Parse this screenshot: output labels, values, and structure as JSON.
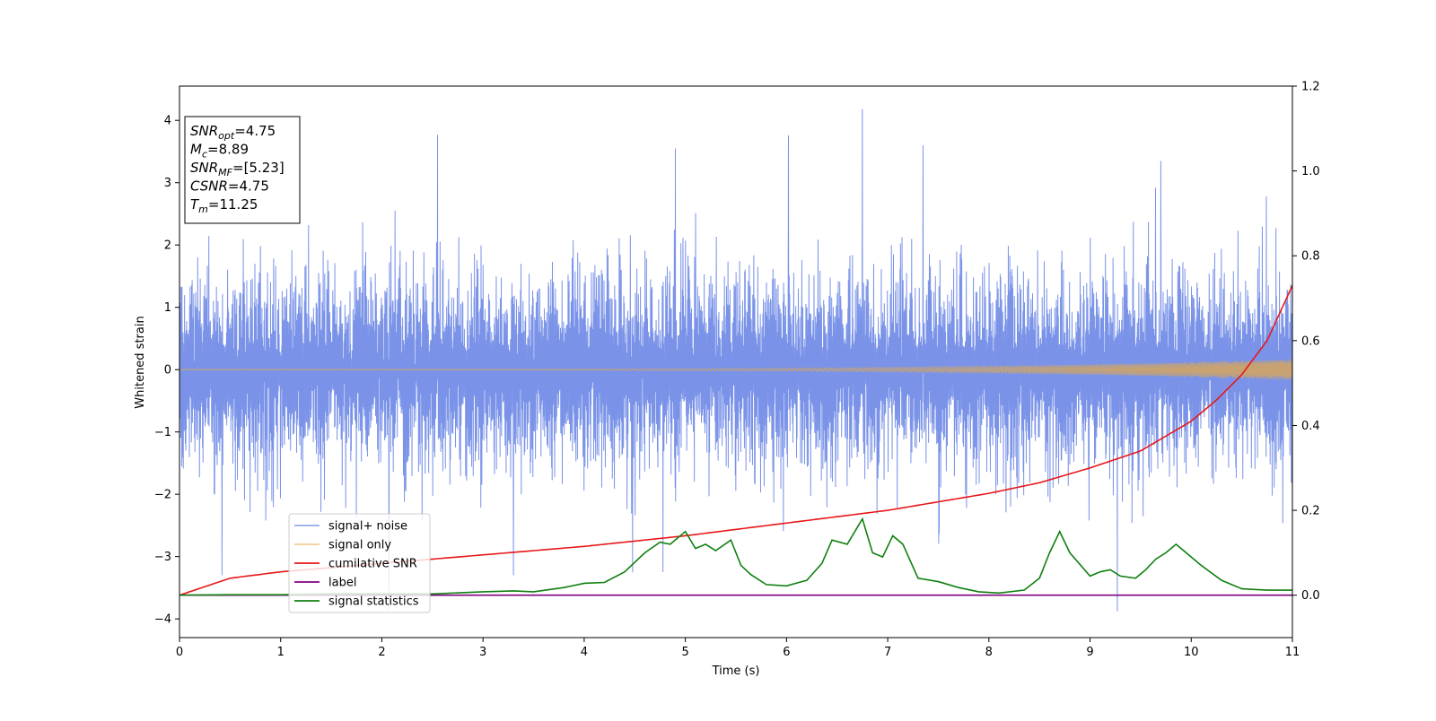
{
  "chart_data": {
    "type": "line",
    "xlabel": "Time (s)",
    "ylabel": "Whitened strain",
    "xlim": [
      0,
      11
    ],
    "ylim_left": [
      -4.3,
      4.55
    ],
    "ylim_right": [
      -0.1,
      1.2
    ],
    "x_ticks": [
      0,
      1,
      2,
      3,
      4,
      5,
      6,
      7,
      8,
      9,
      10,
      11
    ],
    "y_ticks_left": [
      -4,
      -3,
      -2,
      -1,
      0,
      1,
      2,
      3,
      4
    ],
    "y_tick_labels_left": [
      "−4",
      "−3",
      "−2",
      "−1",
      "0",
      "1",
      "2",
      "3",
      "4"
    ],
    "y_ticks_right": [
      0.0,
      0.2,
      0.4,
      0.6,
      0.8,
      1.0,
      1.2
    ],
    "y_tick_labels_right": [
      "0.0",
      "0.2",
      "0.4",
      "0.6",
      "0.8",
      "1.0",
      "1.2"
    ],
    "grid": false,
    "legend_position": "lower-left",
    "info_box": {
      "lines": [
        {
          "var": "SNR",
          "sub": "opt",
          "value": "=4.75"
        },
        {
          "var": "M",
          "sub": "c",
          "value": "=8.89"
        },
        {
          "var": "SNR",
          "sub": "MF",
          "value": "=[5.23]"
        },
        {
          "var": "CSNR",
          "sub": "",
          "value": "=4.75"
        },
        {
          "var": "T",
          "sub": "m",
          "value": "=11.25"
        }
      ]
    },
    "series": [
      {
        "name": "signal+ noise",
        "axis": "left",
        "color": "#6b87e6",
        "style": "noise",
        "description_envelope": {
          "typical_abs": 1.6,
          "max": 4.18,
          "min": -3.9
        },
        "spikes": [
          [
            2.55,
            3.77
          ],
          [
            6.02,
            3.76
          ],
          [
            6.75,
            4.18
          ],
          [
            9.27,
            -3.88
          ],
          [
            2.07,
            -3.85
          ],
          [
            4.9,
            3.55
          ],
          [
            7.35,
            3.6
          ],
          [
            9.7,
            3.35
          ],
          [
            0.42,
            -3.3
          ],
          [
            3.3,
            -3.3
          ]
        ]
      },
      {
        "name": "signal only",
        "axis": "left",
        "color": "#e3a84a",
        "style": "chirp",
        "amplitude_start": 0.01,
        "amplitude_end": 0.17
      },
      {
        "name": "cumilative SNR",
        "axis": "right",
        "color": "#e8171a",
        "x": [
          0,
          0.5,
          1,
          2,
          3,
          4,
          5,
          6,
          7,
          8,
          8.5,
          9,
          9.5,
          10,
          10.25,
          10.5,
          10.75,
          11
        ],
        "values": [
          0.0,
          0.04,
          0.055,
          0.075,
          0.095,
          0.115,
          0.14,
          0.17,
          0.2,
          0.24,
          0.265,
          0.3,
          0.34,
          0.41,
          0.46,
          0.52,
          0.6,
          0.73
        ]
      },
      {
        "name": "label",
        "axis": "right",
        "color": "#800080",
        "x": [
          0,
          11
        ],
        "values": [
          0.0,
          0.0
        ]
      },
      {
        "name": "signal statistics",
        "axis": "right",
        "color": "#108010",
        "x": [
          0,
          0.5,
          1,
          1.5,
          2,
          2.5,
          3,
          3.3,
          3.5,
          3.8,
          4,
          4.2,
          4.4,
          4.6,
          4.75,
          4.85,
          5.0,
          5.1,
          5.2,
          5.3,
          5.45,
          5.55,
          5.65,
          5.8,
          6.0,
          6.2,
          6.35,
          6.45,
          6.6,
          6.75,
          6.85,
          6.95,
          7.05,
          7.15,
          7.3,
          7.5,
          7.7,
          7.9,
          8.1,
          8.35,
          8.5,
          8.6,
          8.7,
          8.8,
          9.0,
          9.1,
          9.2,
          9.3,
          9.45,
          9.55,
          9.65,
          9.75,
          9.85,
          9.95,
          10.1,
          10.3,
          10.5,
          10.75,
          11
        ],
        "values": [
          0.0,
          0.001,
          0.001,
          0.003,
          0.003,
          0.003,
          0.008,
          0.01,
          0.008,
          0.018,
          0.028,
          0.03,
          0.055,
          0.1,
          0.125,
          0.12,
          0.15,
          0.11,
          0.12,
          0.105,
          0.13,
          0.07,
          0.048,
          0.025,
          0.022,
          0.035,
          0.075,
          0.13,
          0.12,
          0.18,
          0.1,
          0.09,
          0.14,
          0.12,
          0.04,
          0.032,
          0.018,
          0.008,
          0.005,
          0.012,
          0.04,
          0.1,
          0.15,
          0.1,
          0.045,
          0.055,
          0.06,
          0.045,
          0.04,
          0.06,
          0.085,
          0.1,
          0.12,
          0.1,
          0.07,
          0.035,
          0.015,
          0.012,
          0.012
        ]
      }
    ]
  }
}
